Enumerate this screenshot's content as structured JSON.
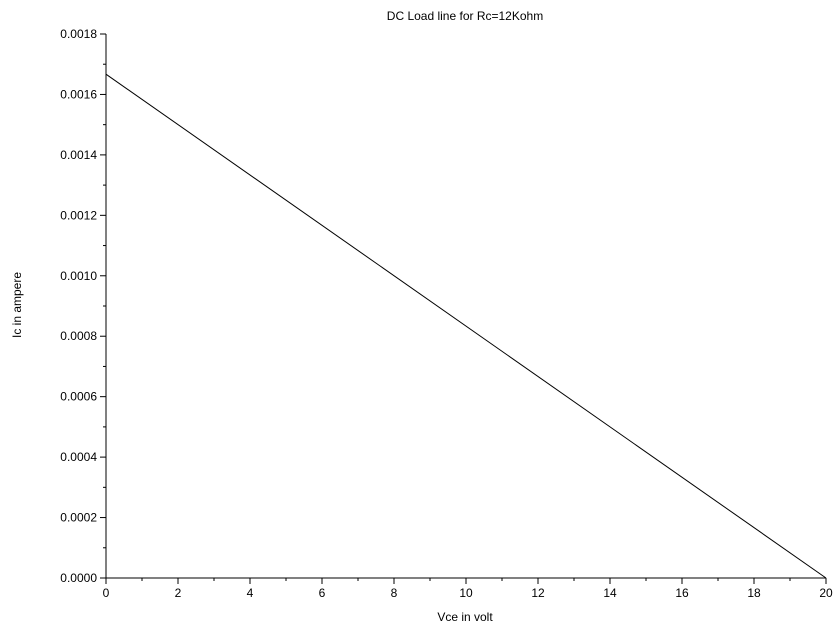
{
  "chart_data": {
    "type": "line",
    "title": "DC Load line for Rc=12Kohm",
    "xlabel": "Vce in volt",
    "ylabel": "Ic in ampere",
    "xlim": [
      0,
      20
    ],
    "ylim": [
      0,
      0.0018
    ],
    "x_ticks": [
      "0",
      "2",
      "4",
      "6",
      "8",
      "10",
      "12",
      "14",
      "16",
      "18",
      "20"
    ],
    "y_ticks": [
      "0.0000",
      "0.0002",
      "0.0004",
      "0.0006",
      "0.0008",
      "0.0010",
      "0.0012",
      "0.0014",
      "0.0016",
      "0.0018"
    ],
    "grid": false,
    "series": [
      {
        "x": [
          0,
          20
        ],
        "y": [
          0.001667,
          0
        ]
      }
    ]
  }
}
